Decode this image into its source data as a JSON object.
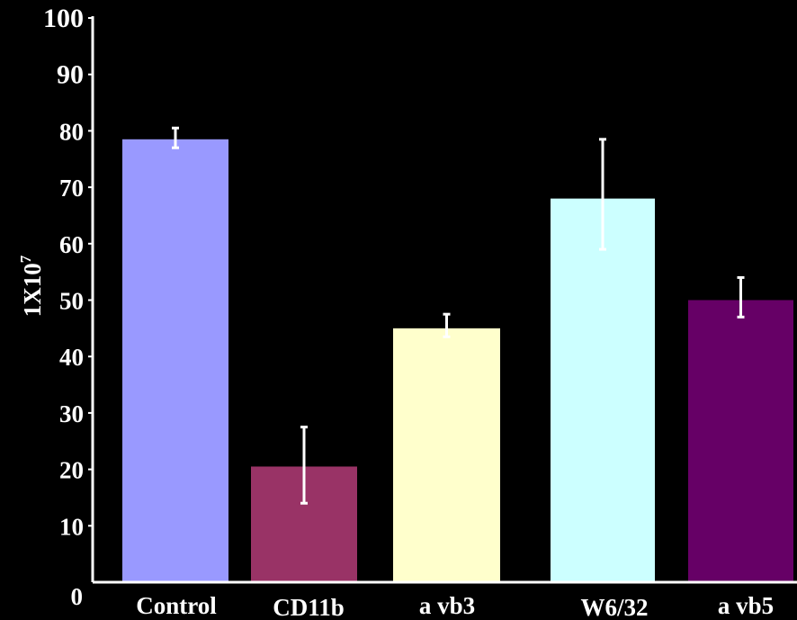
{
  "chart_data": {
    "type": "bar",
    "categories": [
      "Control",
      "CD11b",
      "a vb3",
      "W6/32",
      "a vb5"
    ],
    "values": [
      78.5,
      20.5,
      45,
      68,
      50
    ],
    "errors": [
      {
        "low": 77,
        "high": 80.5
      },
      {
        "low": 14,
        "high": 27.5
      },
      {
        "low": 43.5,
        "high": 47.5
      },
      {
        "low": 59,
        "high": 78.5
      },
      {
        "low": 47,
        "high": 54
      }
    ],
    "colors": [
      "#9999ff",
      "#993366",
      "#ffffcc",
      "#ccffff",
      "#660066"
    ],
    "error_bar_color": "#ffffff",
    "ylabel_main": "1X10",
    "ylabel_sup": "7",
    "xlabel": "",
    "ylim": [
      0,
      100
    ],
    "yticks": [
      "100",
      "90",
      "80",
      "70",
      "60",
      "50",
      "40",
      "30",
      "20",
      "10",
      "0"
    ],
    "ytick_values": [
      100,
      90,
      80,
      70,
      60,
      50,
      40,
      30,
      20,
      10,
      0
    ],
    "grid": false,
    "legend": "none",
    "background": "#000000",
    "axis_color": "#ffffff"
  }
}
